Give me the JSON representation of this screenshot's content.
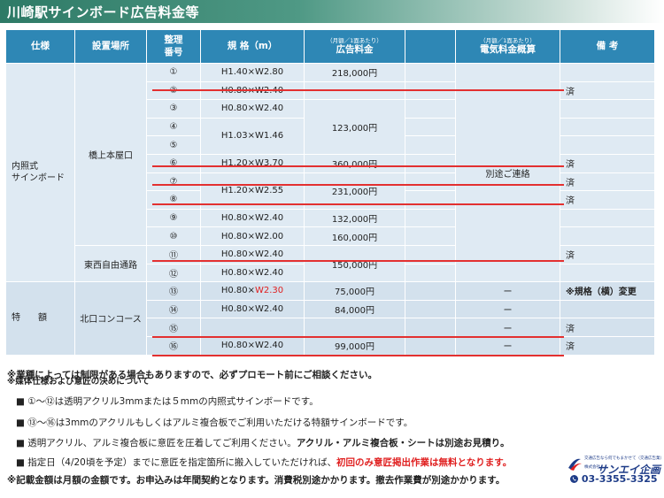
{
  "page_title": "川崎駅サインボード広告料金等",
  "table": {
    "headers": {
      "type": "仕様",
      "location": "設置場所",
      "number": "整理\n番号",
      "size": "規 格（m）",
      "fee_small": "（月額／1面あたり）",
      "fee": "広告料金",
      "elec_small": "（月額／1面あたり）",
      "elec": "電気料金概算",
      "remarks": "備 考"
    },
    "category_internal": "内照式\nサインボード",
    "category_special": "特　　額",
    "loc_1": "橋上本屋口",
    "loc_2": "東西自由通路",
    "loc_3": "北口コンコース",
    "elec_contact": "別途ご連絡",
    "dash": "ー",
    "rows": [
      {
        "no": "①",
        "size": "H1.40×W2.80",
        "fee": "218,000円",
        "remark": ""
      },
      {
        "no": "②",
        "size": "H0.80×W2.40",
        "remark": "済"
      },
      {
        "no": "③",
        "size": "H0.80×W2.40",
        "remark": ""
      },
      {
        "no": "④",
        "remark": ""
      },
      {
        "no": "⑤",
        "remark": ""
      },
      {
        "no": "⑥",
        "size": "H1.20×W3.70",
        "fee": "360,000円",
        "remark": "済"
      },
      {
        "no": "⑦",
        "remark": "済"
      },
      {
        "no": "⑧",
        "remark": "済"
      },
      {
        "no": "⑨",
        "size": "H0.80×W2.40",
        "fee": "132,000円",
        "remark": ""
      },
      {
        "no": "⑩",
        "size": "H0.80×W2.00",
        "fee": "160,000円",
        "remark": ""
      },
      {
        "no": "⑪",
        "size": "H0.80×W2.40",
        "remark": "済"
      },
      {
        "no": "⑫",
        "size": "H0.80×W2.40",
        "remark": ""
      },
      {
        "no": "⑬",
        "size_a": "H0.80×",
        "size_b": "W2.30",
        "fee": "75,000円",
        "remark": "※規格（横）変更"
      },
      {
        "no": "⑭",
        "size": "H0.80×W2.40",
        "fee": "84,000円",
        "remark": ""
      },
      {
        "no": "⑮",
        "remark": "済"
      },
      {
        "no": "⑯",
        "size": "H0.80×W2.40",
        "fee": "99,000円",
        "remark": "済"
      }
    ],
    "merged": {
      "fee_3_5": "123,000円",
      "size_4_5": "H1.03×W1.46",
      "size_7_8": "H1.20×W2.55",
      "fee_7_8": "231,000円",
      "fee_11_12": "150,000円"
    }
  },
  "notes": {
    "overlap_a": "※業種によっては制限がある場合もありますので、必ずプロモート前にご相談ください。",
    "overlap_b": "※媒体仕様および意匠の決めについて",
    "n1": "■ ①～⑫は透明アクリル3mmまたは５mmの内照式サインボードです。",
    "n2": "■ ⑬～⑯は3mmのアクリルもしくはアルミ複合板でご利用いただける特額サインボードです。",
    "n3_a": "■ 透明アクリル、アルミ複合板に意匠を圧着してご利用ください。",
    "n3_b": "アクリル・アルミ複合板・シートは別途お見積り。",
    "n4_a": "■ 指定日（4/20頃を予定）までに意匠を指定箇所に搬入していただければ、",
    "n4_b": "初回のみ意匠掲出作業は無料となります。",
    "n5": "※記載金額は月額の金額です。お申込みは年間契約となります。消費税別途かかります。撤去作業費が別途かかります。"
  },
  "logo": {
    "tagline": "交通広告なら何でもまかせて（交通広告業）",
    "kind": "株式会社",
    "brand": "サンエイ企画",
    "phone": "03-3355-3325"
  },
  "colors": {
    "header": "#2e87b5",
    "cell": "#dfeaf3",
    "strike": "#e33030",
    "title_bar": "#2e7a66",
    "brand": "#1e3c88"
  }
}
